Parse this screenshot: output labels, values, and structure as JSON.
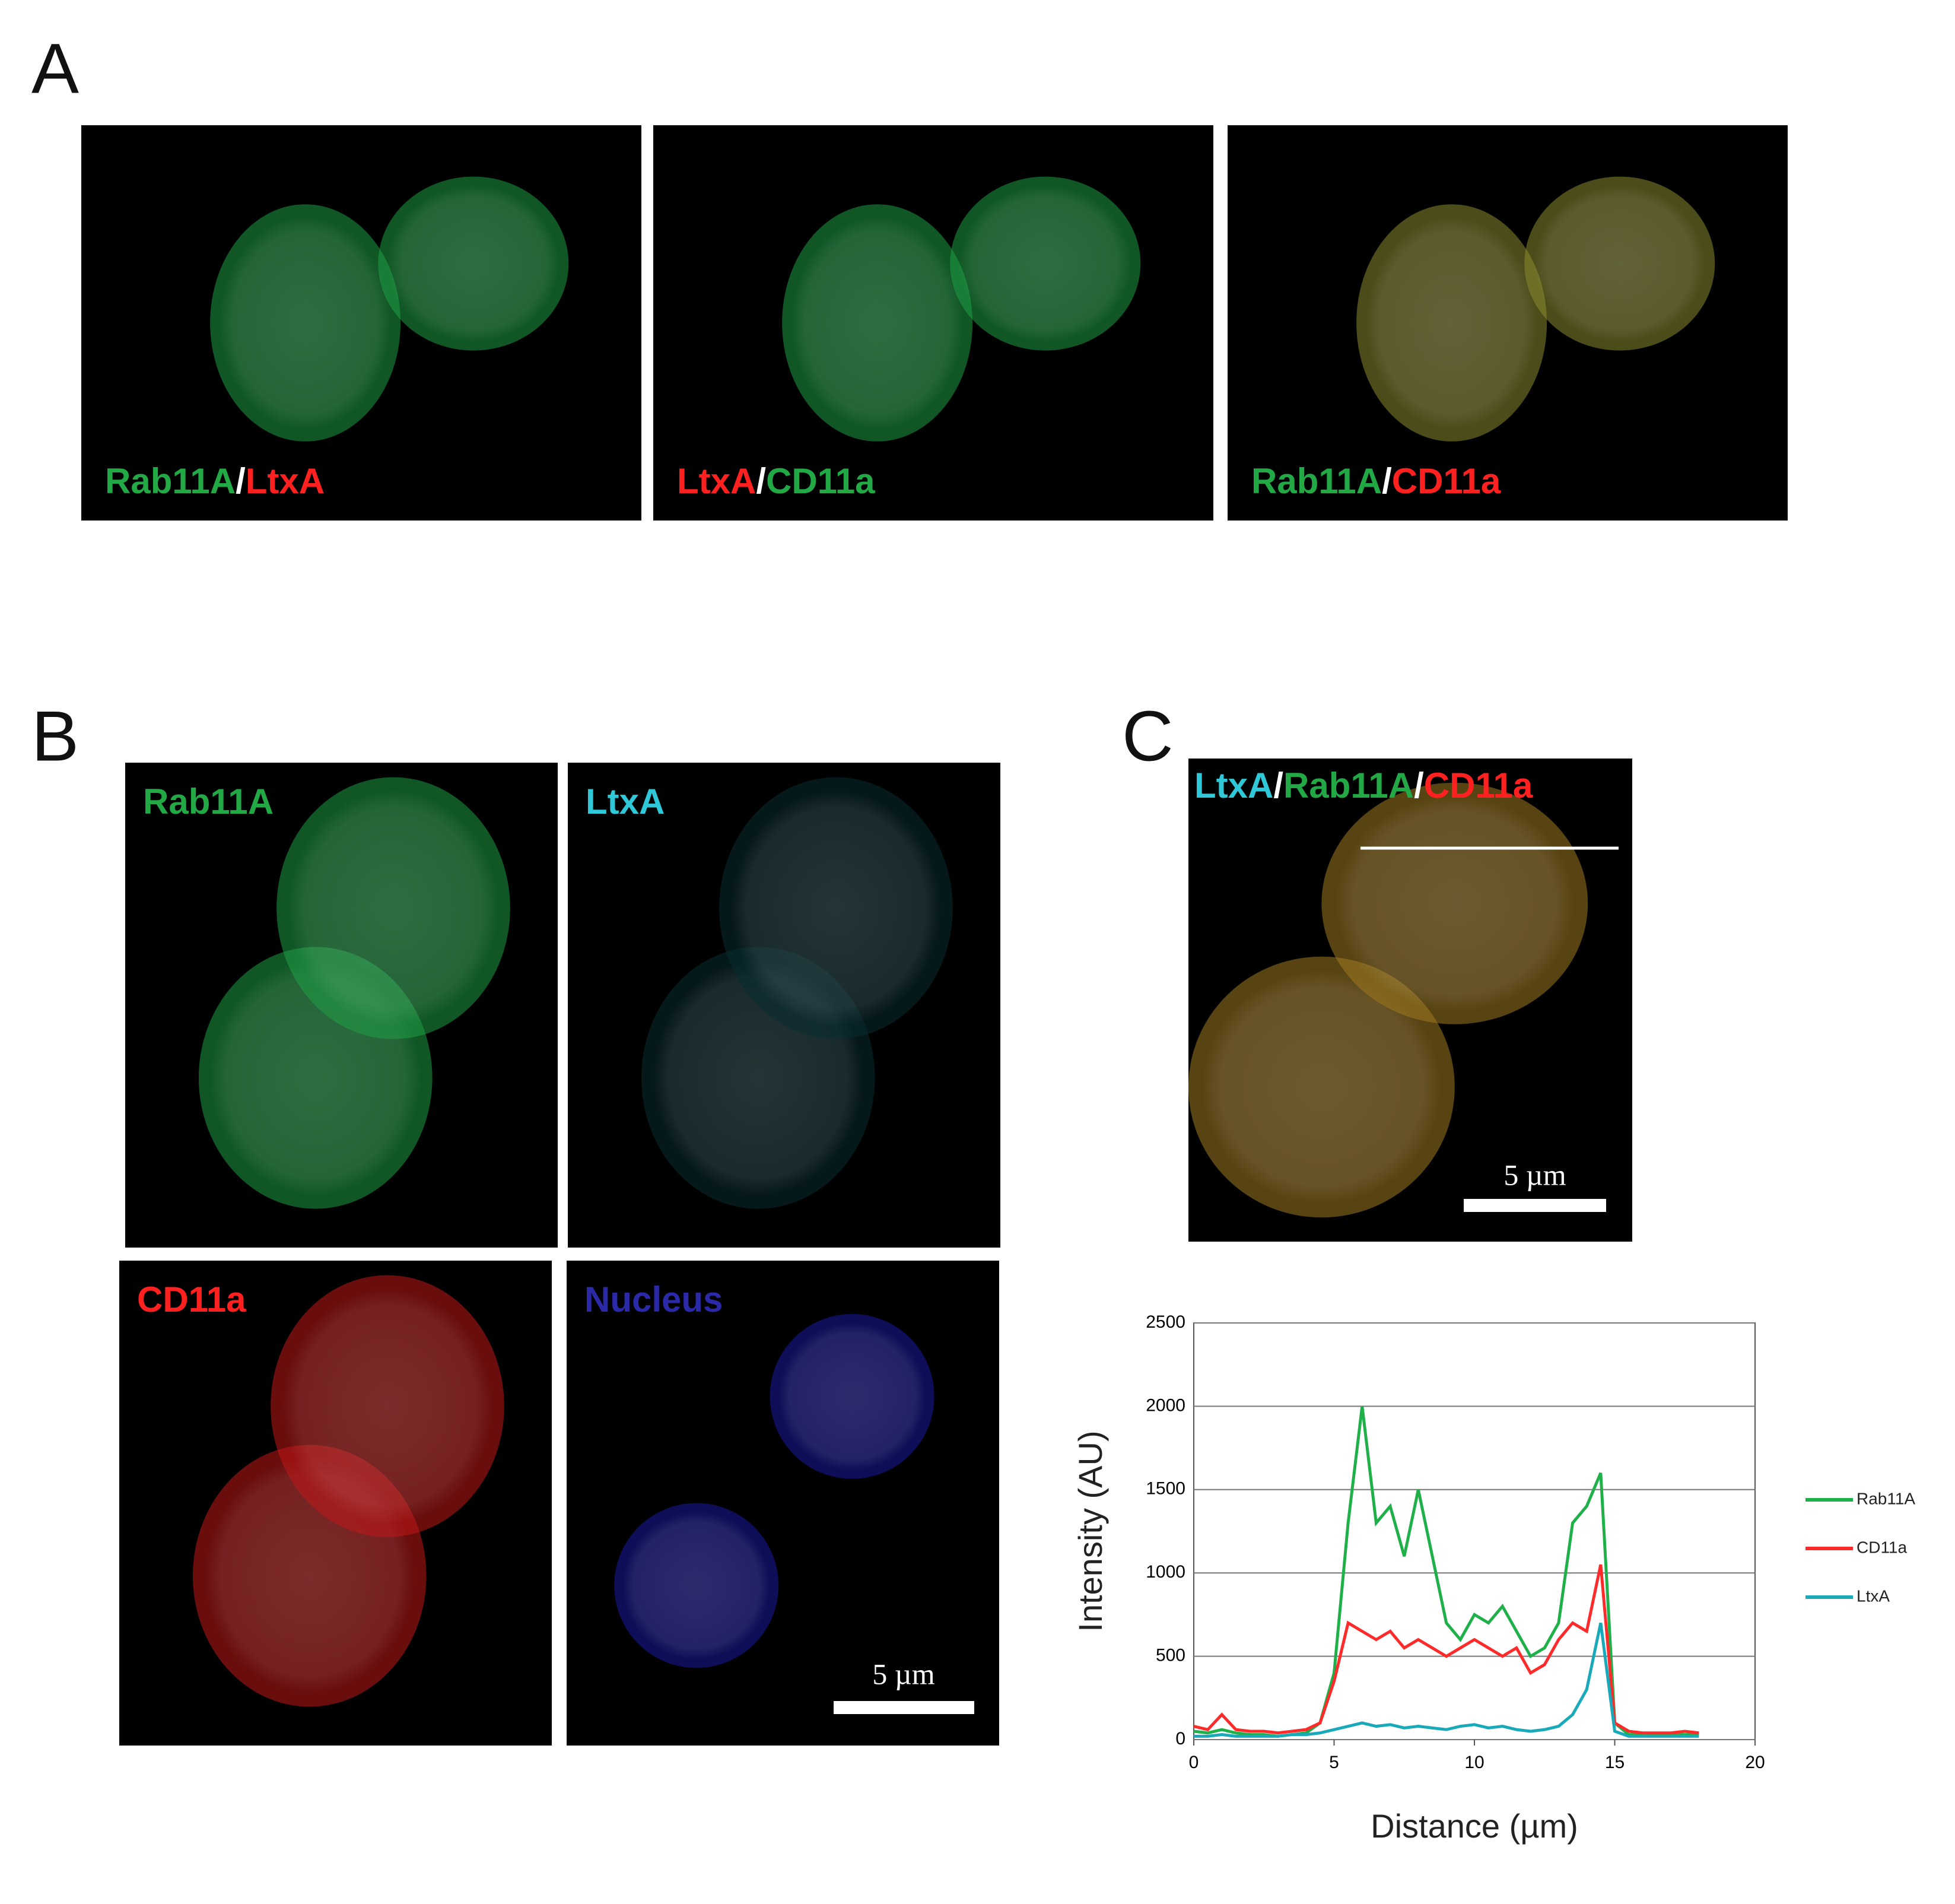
{
  "figure_labels": [
    "A",
    "B",
    "C"
  ],
  "panel_a": [
    [
      {
        "text": "Rab11A",
        "color": "#22a845"
      },
      {
        "text": "/",
        "color": "#ffffff"
      },
      {
        "text": "LtxA",
        "color": "#ff2020"
      }
    ],
    [
      {
        "text": "LtxA",
        "color": "#ff2020"
      },
      {
        "text": "/",
        "color": "#ffffff"
      },
      {
        "text": "CD11a",
        "color": "#22a845"
      }
    ],
    [
      {
        "text": "Rab11A",
        "color": "#22a845"
      },
      {
        "text": "/",
        "color": "#ffffff"
      },
      {
        "text": "CD11a",
        "color": "#ff2020"
      }
    ]
  ],
  "panel_b": [
    {
      "text": "Rab11A",
      "color": "#22a845"
    },
    {
      "text": "LtxA",
      "color": "#2fc8d8"
    },
    {
      "text": "CD11a",
      "color": "#ff2020"
    },
    {
      "text": "Nucleus",
      "color": "#2a2aa8"
    }
  ],
  "panel_b_scale": "5 µm",
  "panel_c": {
    "label": [
      {
        "text": "LtxA",
        "color": "#2fc8d8"
      },
      {
        "text": "/",
        "color": "#ffffff"
      },
      {
        "text": "Rab11A",
        "color": "#22a845"
      },
      {
        "text": "/",
        "color": "#ffffff"
      },
      {
        "text": "CD11a",
        "color": "#ff2020"
      }
    ],
    "scale": "5 µm"
  },
  "chart_data": {
    "type": "line",
    "xlabel": "Distance (µm)",
    "ylabel": "Intensity (AU)",
    "x": [
      0,
      0.5,
      1,
      1.5,
      2,
      2.5,
      3,
      3.5,
      4,
      4.5,
      5,
      5.5,
      6,
      6.5,
      7,
      7.5,
      8,
      8.5,
      9,
      9.5,
      10,
      10.5,
      11,
      11.5,
      12,
      12.5,
      13,
      13.5,
      14,
      14.5,
      15,
      15.5,
      16,
      16.5,
      17,
      17.5,
      18
    ],
    "series": [
      {
        "name": "Rab11A",
        "color": "#1fb04a",
        "values": [
          50,
          40,
          60,
          40,
          30,
          30,
          20,
          30,
          40,
          100,
          400,
          1300,
          2000,
          1300,
          1400,
          1100,
          1500,
          1100,
          700,
          600,
          750,
          700,
          800,
          650,
          500,
          550,
          700,
          1300,
          1400,
          1600,
          100,
          30,
          30,
          30,
          30,
          30,
          30
        ]
      },
      {
        "name": "CD11a",
        "color": "#ff2a2a",
        "values": [
          80,
          60,
          150,
          60,
          50,
          50,
          40,
          50,
          60,
          100,
          350,
          700,
          650,
          600,
          650,
          550,
          600,
          550,
          500,
          550,
          600,
          550,
          500,
          550,
          400,
          450,
          600,
          700,
          650,
          1050,
          100,
          50,
          40,
          40,
          40,
          50,
          40
        ]
      },
      {
        "name": "LtxA",
        "color": "#1aa9b8",
        "values": [
          20,
          20,
          30,
          20,
          20,
          20,
          20,
          30,
          30,
          40,
          60,
          80,
          100,
          80,
          90,
          70,
          80,
          70,
          60,
          80,
          90,
          70,
          80,
          60,
          50,
          60,
          80,
          150,
          300,
          700,
          50,
          20,
          20,
          20,
          20,
          20,
          20
        ]
      }
    ],
    "xlim": [
      0,
      20
    ],
    "xticks": [
      0,
      5,
      10,
      15,
      20
    ],
    "ylim": [
      0,
      2500
    ],
    "yticks": [
      0,
      500,
      1000,
      1500,
      2000,
      2500
    ],
    "grid": true,
    "legend": "right"
  }
}
